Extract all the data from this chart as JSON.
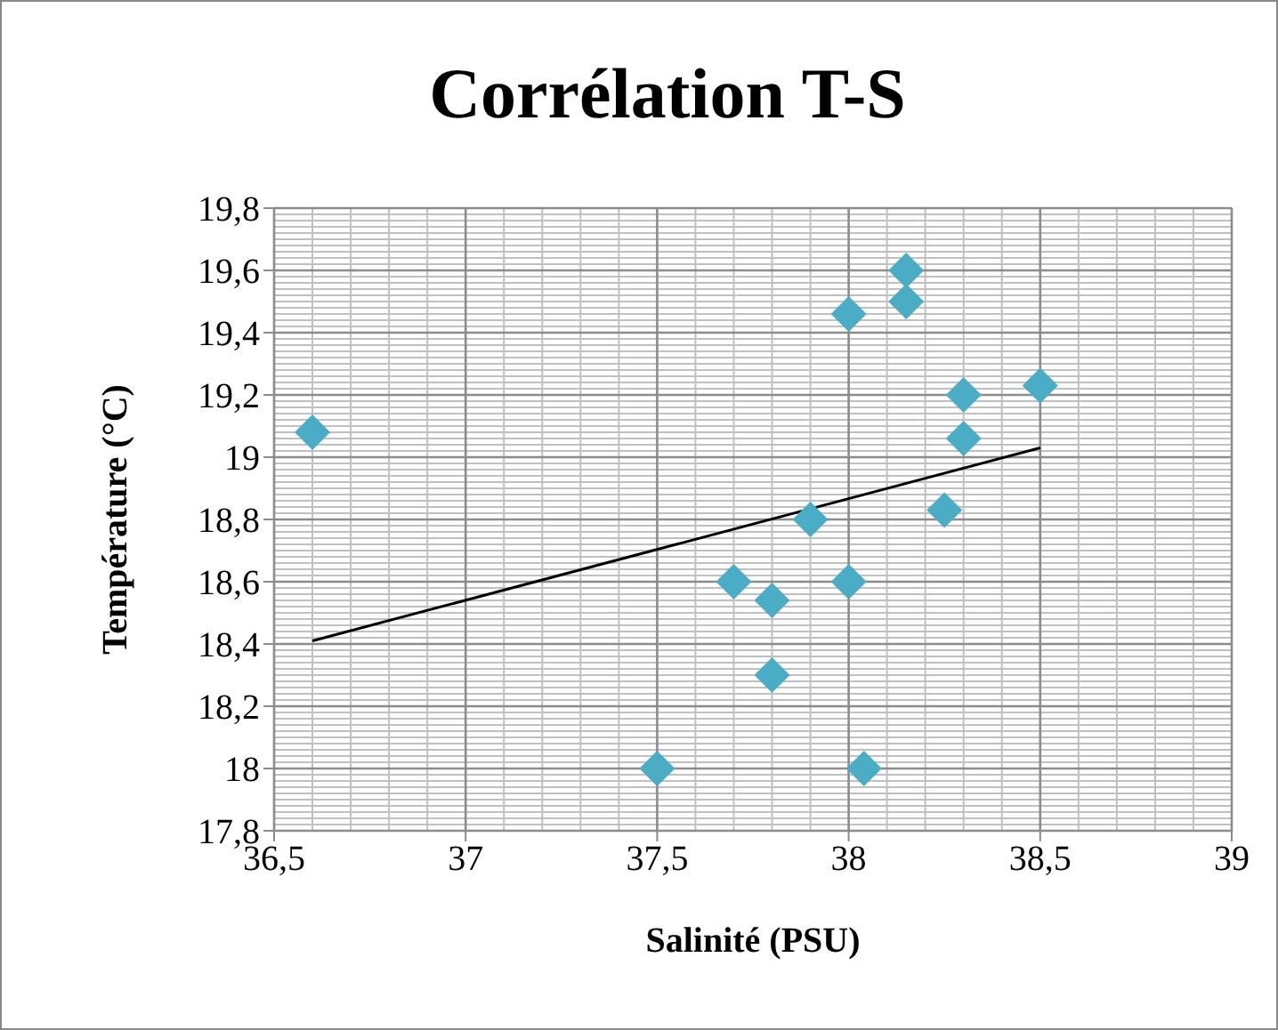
{
  "chart_data": {
    "type": "scatter",
    "title": "Corrélation T-S",
    "xlabel": "Salinité (PSU)",
    "ylabel": "Température (°C)",
    "xlim": [
      36.5,
      39
    ],
    "xticks": [
      {
        "value": 36.5,
        "label": "36,5"
      },
      37,
      {
        "value": 37.5,
        "label": "37,5"
      },
      38,
      {
        "value": 38.5,
        "label": "38,5"
      },
      39
    ],
    "ylim": [
      17.8,
      19.8
    ],
    "yticks": [
      {
        "value": 17.8,
        "label": "17,8"
      },
      18,
      {
        "value": 18.2,
        "label": "18,2"
      },
      {
        "value": 18.4,
        "label": "18,4"
      },
      {
        "value": 18.6,
        "label": "18,6"
      },
      {
        "value": 18.8,
        "label": "18,8"
      },
      19,
      {
        "value": 19.2,
        "label": "19,2"
      },
      {
        "value": 19.4,
        "label": "19,4"
      },
      {
        "value": 19.6,
        "label": "19,6"
      },
      {
        "value": 19.8,
        "label": "19,8"
      }
    ],
    "grid": true,
    "legend": false,
    "marker": "diamond",
    "series": [
      {
        "color": "#4bacc6",
        "x": [
          36.6,
          37.5,
          37.7,
          37.8,
          37.8,
          37.9,
          38.0,
          38.0,
          38.04,
          38.15,
          38.15,
          38.3,
          38.3,
          38.25,
          38.5
        ],
        "values": [
          19.08,
          18.0,
          18.6,
          18.54,
          18.3,
          18.8,
          18.6,
          19.46,
          18.0,
          19.6,
          19.5,
          19.2,
          19.06,
          18.83,
          19.23
        ]
      },
      {
        "type": "line",
        "color": "#000000",
        "marker": "none",
        "x": [
          36.6,
          38.5
        ],
        "values": [
          18.41,
          19.03
        ]
      }
    ]
  }
}
